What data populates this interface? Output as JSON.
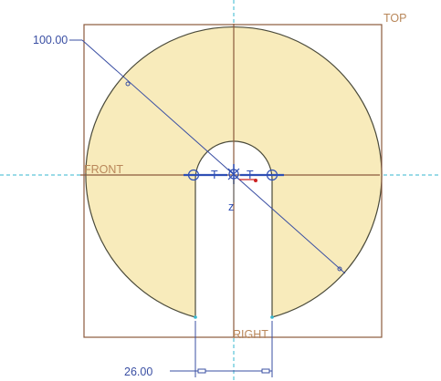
{
  "sketch": {
    "planes": {
      "top": "TOP",
      "front": "FRONT",
      "right": "RIGHT"
    },
    "dimensions": {
      "diameter": "100.00",
      "slot_width": "26.00"
    },
    "constraint_marks": {
      "left": "T",
      "right": "T",
      "origin_axis": "z"
    },
    "colors": {
      "profile_fill": "#f8ebbb",
      "profile_edge": "#4a4a3a",
      "datum_plane": "#8b5a3c",
      "dimension": "#3a4fa3",
      "centerline": "#35b7cf",
      "constraint_symbol": "#2f4fb5",
      "csys_x": "#cc2222"
    }
  }
}
